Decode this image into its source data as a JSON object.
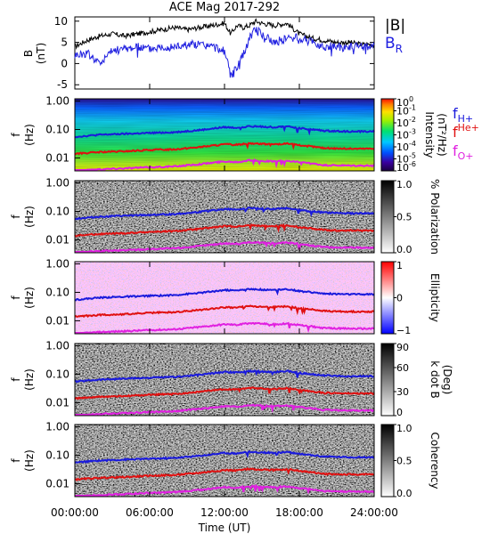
{
  "title": "ACE Mag 2017-292",
  "colors": {
    "b_total": "#000000",
    "b_r": "#2020e0",
    "f_h": "#1a1adc",
    "f_he": "#e01010",
    "f_o": "#e020e0"
  },
  "chart_data": [
    {
      "type": "line",
      "panel": "B",
      "ylabel_line1": "B",
      "ylabel_line2": "(nT)",
      "ylim": [
        -6,
        11
      ],
      "yticks": [
        "10",
        "5",
        "0",
        "-5"
      ],
      "ytick_values": [
        10,
        5,
        0,
        -5
      ],
      "xlim_hours": [
        0,
        24
      ],
      "series": [
        {
          "name": "|B|",
          "x": [
            0,
            1,
            2,
            3,
            4,
            5,
            6,
            7,
            8,
            9,
            10,
            11,
            12,
            12.5,
            13,
            13.5,
            14,
            14.5,
            15,
            16,
            17,
            18,
            19,
            20,
            21,
            22,
            23,
            24
          ],
          "values": [
            4,
            5.5,
            6.5,
            7,
            6.5,
            7,
            7.5,
            8,
            8.5,
            8,
            8.5,
            9,
            9.5,
            7,
            9,
            8.5,
            9,
            10,
            9.5,
            9,
            9.5,
            7,
            6,
            5.5,
            5,
            5,
            4.5,
            4.5
          ]
        },
        {
          "name": "B",
          "subscript": "R",
          "x": [
            0,
            1,
            2,
            3,
            4,
            5,
            6,
            7,
            8,
            9,
            10,
            11,
            12,
            12.5,
            13,
            13.5,
            14,
            14.5,
            15,
            16,
            17,
            18,
            19,
            20,
            21,
            22,
            23,
            24
          ],
          "values": [
            2,
            2.5,
            0,
            3,
            3.5,
            4,
            3.5,
            4,
            4,
            4.5,
            4.5,
            4,
            3,
            -3,
            -1,
            2,
            6,
            8,
            7,
            5,
            6,
            6,
            5,
            4,
            4,
            4,
            4,
            4
          ]
        }
      ]
    },
    {
      "type": "heatmap",
      "panel": "Intensity",
      "ylabel_line1": "f",
      "ylabel_line2": "(Hz)",
      "yticks": [
        "1.00",
        "0.10",
        "0.01"
      ],
      "ytick_values": [
        1,
        0.1,
        0.01
      ],
      "ylim": [
        0.0035,
        1.2
      ],
      "colorbar_label_line1": "Intensity",
      "colorbar_label_line2": "(nT²/Hz)",
      "colorbar_ticks": [
        "10^0",
        "10^-1",
        "10^-2",
        "10^-3",
        "10^-4",
        "10^-5",
        "10^-6"
      ],
      "colorbar_exponents": [
        "0",
        "-1",
        "-2",
        "-3",
        "-4",
        "-5",
        "-6"
      ],
      "legend": [
        {
          "base": "f",
          "sub": "H+"
        },
        {
          "base": "f",
          "sup": "He+"
        },
        {
          "base": "f",
          "sub": "O+"
        }
      ]
    },
    {
      "type": "heatmap",
      "panel": "Polarization",
      "ylabel_line1": "f",
      "ylabel_line2": "(Hz)",
      "yticks": [
        "1.00",
        "0.10",
        "0.01"
      ],
      "ytick_values": [
        1,
        0.1,
        0.01
      ],
      "ylim": [
        0.0035,
        1.2
      ],
      "colorbar_label_line1": "% Polarization",
      "colorbar_label_line2": "",
      "colorbar_ticks": [
        "1.0",
        "0.5",
        "0.0"
      ]
    },
    {
      "type": "heatmap",
      "panel": "Ellipticity",
      "ylabel_line1": "f",
      "ylabel_line2": "(Hz)",
      "yticks": [
        "1.00",
        "0.10",
        "0.01"
      ],
      "ytick_values": [
        1,
        0.1,
        0.01
      ],
      "ylim": [
        0.0035,
        1.2
      ],
      "colorbar_label_line1": "Ellipticity",
      "colorbar_label_line2": "",
      "colorbar_ticks": [
        "1",
        "0",
        "−1"
      ]
    },
    {
      "type": "heatmap",
      "panel": "k dot B",
      "ylabel_line1": "f",
      "ylabel_line2": "(Hz)",
      "yticks": [
        "1.00",
        "0.10",
        "0.01"
      ],
      "ytick_values": [
        1,
        0.1,
        0.01
      ],
      "ylim": [
        0.0035,
        1.2
      ],
      "colorbar_label_line1": "k dot B",
      "colorbar_label_line2": "(Deg)",
      "colorbar_ticks": [
        "90",
        "60",
        "30",
        "0"
      ]
    },
    {
      "type": "heatmap",
      "panel": "Coherency",
      "ylabel_line1": "f",
      "ylabel_line2": "(Hz)",
      "yticks": [
        "1.00",
        "0.10",
        "0.01"
      ],
      "ytick_values": [
        1,
        0.1,
        0.01
      ],
      "ylim": [
        0.0035,
        1.2
      ],
      "colorbar_label_line1": "Coherency",
      "colorbar_label_line2": "",
      "colorbar_ticks": [
        "1.0",
        "0.5",
        "0.0"
      ]
    }
  ],
  "gyro_lines": {
    "x_hours": [
      0,
      2,
      4,
      6,
      8,
      10,
      12,
      13,
      14,
      15,
      16,
      17,
      18,
      19,
      20,
      22,
      24
    ],
    "f_h": [
      0.055,
      0.065,
      0.07,
      0.075,
      0.08,
      0.095,
      0.12,
      0.115,
      0.13,
      0.125,
      0.12,
      0.13,
      0.11,
      0.1,
      0.09,
      0.085,
      0.085
    ],
    "f_he": [
      0.014,
      0.016,
      0.017,
      0.019,
      0.02,
      0.024,
      0.03,
      0.029,
      0.033,
      0.031,
      0.03,
      0.032,
      0.028,
      0.025,
      0.022,
      0.021,
      0.021
    ],
    "f_o": [
      0.0035,
      0.004,
      0.0043,
      0.0047,
      0.005,
      0.006,
      0.0075,
      0.0072,
      0.0082,
      0.0078,
      0.0075,
      0.008,
      0.007,
      0.0063,
      0.0055,
      0.0053,
      0.0053
    ]
  },
  "xaxis": {
    "label": "Time (UT)",
    "ticks": [
      "00:00:00",
      "06:00:00",
      "12:00:00",
      "18:00:00",
      "24:00:00"
    ],
    "tick_hours": [
      0,
      6,
      12,
      18,
      24
    ]
  }
}
